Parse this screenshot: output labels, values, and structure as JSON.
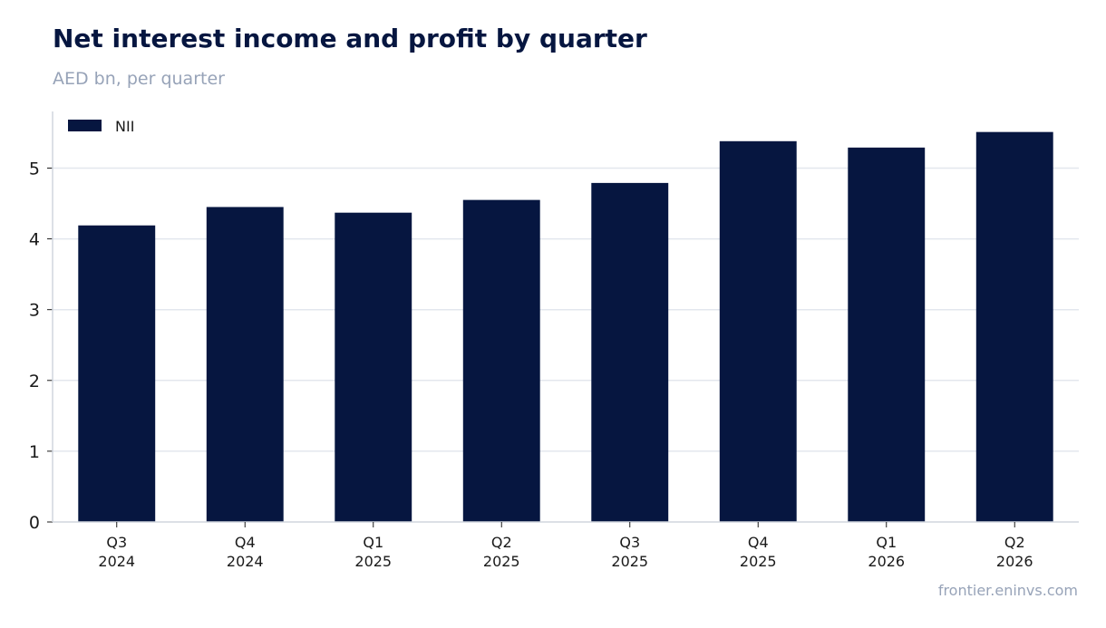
{
  "title": "Net interest income and profit by quarter",
  "subtitle": "AED bn, per quarter",
  "source": "frontier.eninvs.com",
  "colors": {
    "bar": "#061640",
    "grid": "#e3e7ee",
    "axis": "#d0d5de",
    "tick_text": "#1a1a1a",
    "muted": "#97a3b8"
  },
  "chart_data": {
    "type": "bar",
    "categories": [
      [
        "Q3",
        "2024"
      ],
      [
        "Q4",
        "2024"
      ],
      [
        "Q1",
        "2025"
      ],
      [
        "Q2",
        "2025"
      ],
      [
        "Q3",
        "2025"
      ],
      [
        "Q4",
        "2025"
      ],
      [
        "Q1",
        "2026"
      ],
      [
        "Q2",
        "2026"
      ]
    ],
    "series": [
      {
        "name": "NII",
        "values": [
          4.19,
          4.45,
          4.37,
          4.55,
          4.79,
          5.38,
          5.29,
          5.51
        ]
      }
    ],
    "yticks": [
      0,
      1,
      2,
      3,
      4,
      5
    ],
    "ylim": [
      0,
      5.8
    ],
    "grid": true,
    "legend": "top-left"
  }
}
